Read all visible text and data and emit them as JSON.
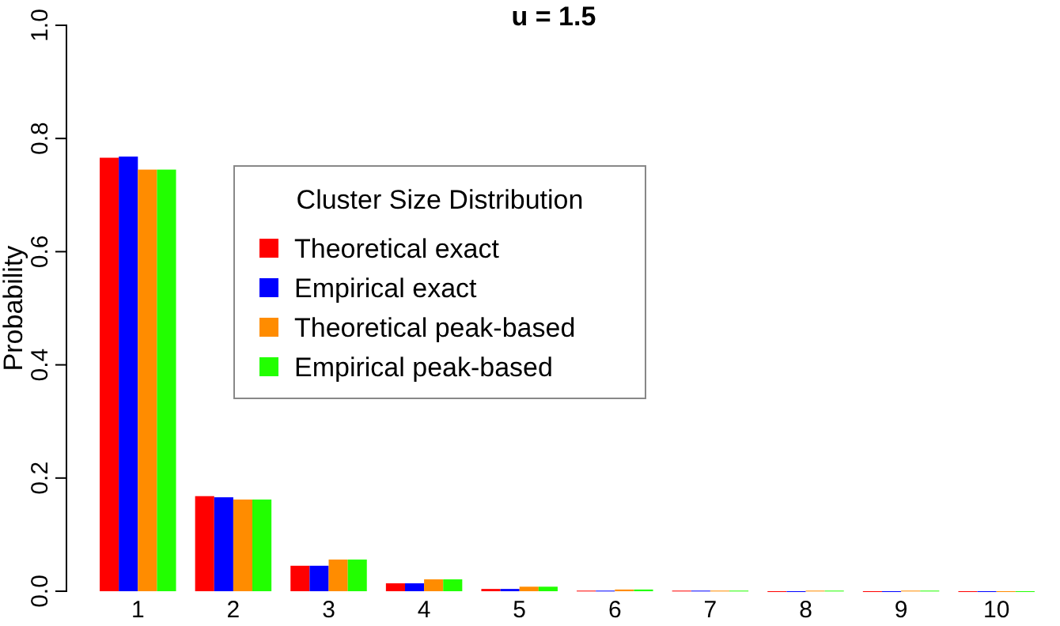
{
  "chart_data": {
    "type": "bar",
    "title": "u = 1.5",
    "ylabel": "Probability",
    "legend_title": "Cluster Size Distribution",
    "legend": "center",
    "categories": [
      "1",
      "2",
      "3",
      "4",
      "5",
      "6",
      "7",
      "8",
      "9",
      "10"
    ],
    "series": [
      {
        "name": "Theoretical exact",
        "color": "#ff0000",
        "values": [
          0.766,
          0.168,
          0.045,
          0.014,
          0.004,
          0.001,
          0.001,
          0,
          0,
          0
        ]
      },
      {
        "name": "Empirical exact",
        "color": "#0000ff",
        "values": [
          0.768,
          0.166,
          0.045,
          0.014,
          0.004,
          0.001,
          0.001,
          0,
          0,
          0
        ]
      },
      {
        "name": "Theoretical peak-based",
        "color": "#ff8c00",
        "values": [
          0.745,
          0.162,
          0.056,
          0.021,
          0.008,
          0.003,
          0.001,
          0.001,
          0.001,
          0
        ]
      },
      {
        "name": "Empirical peak-based",
        "color": "#22ff00",
        "values": [
          0.745,
          0.162,
          0.056,
          0.021,
          0.008,
          0.003,
          0.001,
          0.001,
          0.001,
          0
        ]
      }
    ],
    "ylim": [
      0,
      1
    ],
    "yticks": [
      {
        "value": 0,
        "label": "0.0"
      },
      {
        "value": 0.2,
        "label": "0.2"
      },
      {
        "value": 0.4,
        "label": "0.4"
      },
      {
        "value": 0.6,
        "label": "0.6"
      },
      {
        "value": 0.8,
        "label": "0.8"
      },
      {
        "value": 1,
        "label": "1.0"
      }
    ]
  }
}
